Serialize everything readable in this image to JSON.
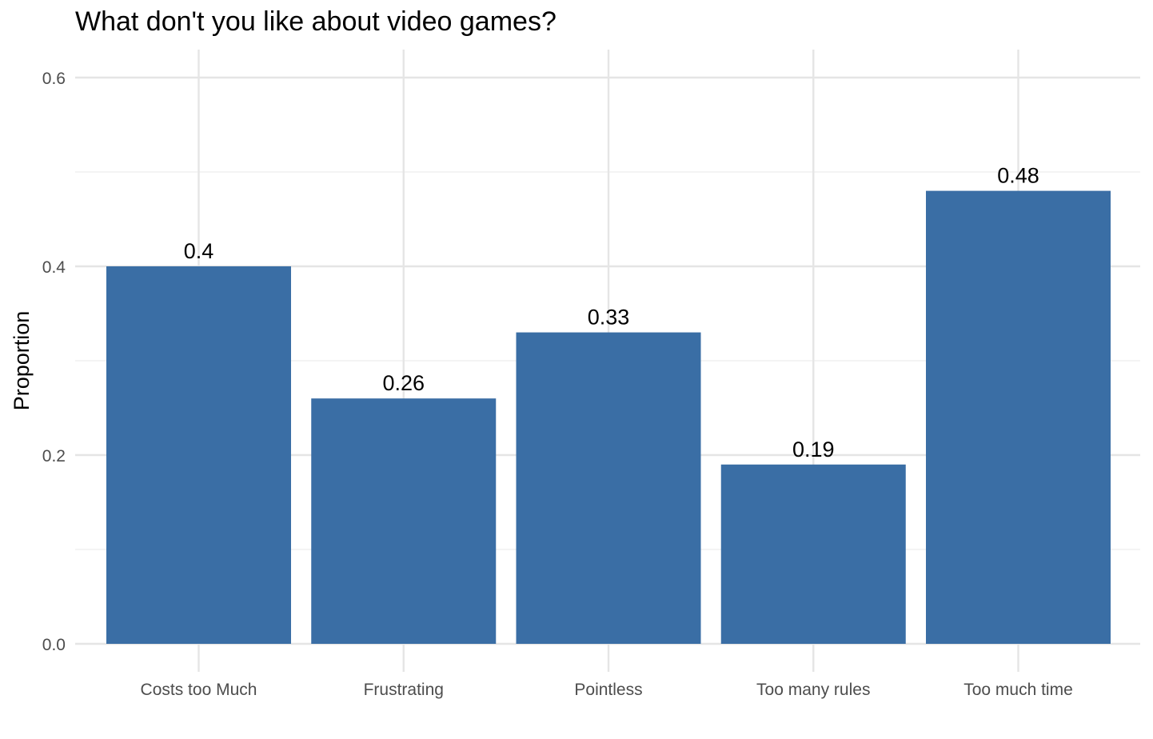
{
  "chart_data": {
    "type": "bar",
    "title": "What don't you like about video games?",
    "xlabel": "",
    "ylabel": "Proportion",
    "categories": [
      "Costs too Much",
      "Frustrating",
      "Pointless",
      "Too many rules",
      "Too much time"
    ],
    "values": [
      0.4,
      0.26,
      0.33,
      0.19,
      0.48
    ],
    "value_labels": [
      "0.4",
      "0.26",
      "0.33",
      "0.19",
      "0.48"
    ],
    "ylim": [
      0,
      0.62
    ],
    "y_ticks": [
      0.0,
      0.2,
      0.4,
      0.6
    ],
    "y_tick_labels": [
      "0.0",
      "0.2",
      "0.4",
      "0.6"
    ],
    "grid": true,
    "bar_color": "#3A6EA5"
  }
}
